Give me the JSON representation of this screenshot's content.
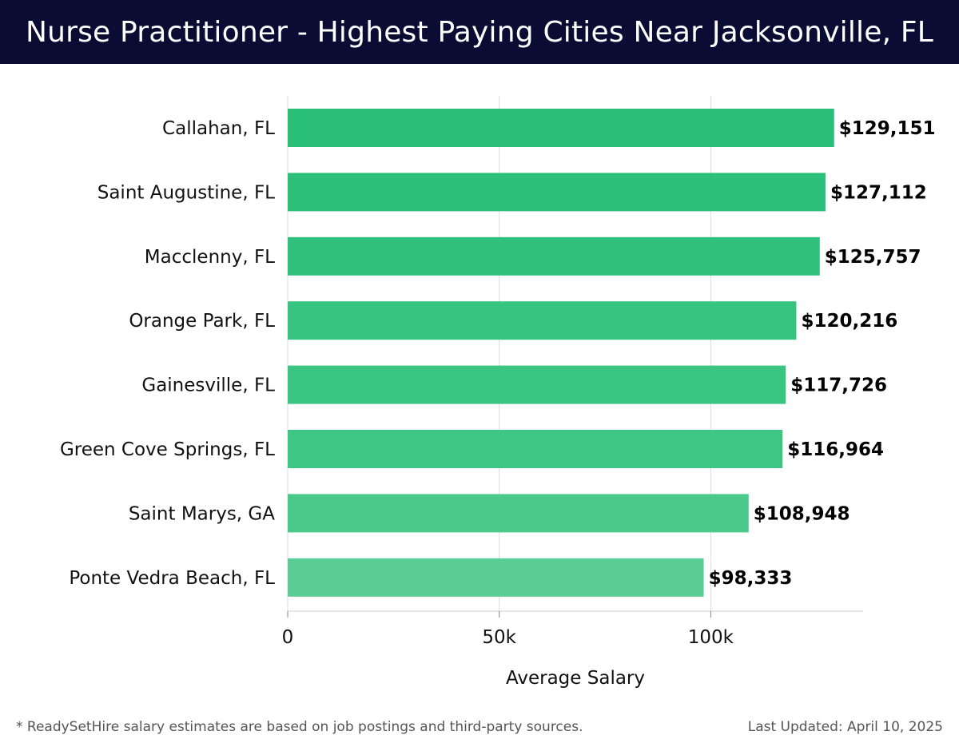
{
  "header": {
    "title": "Nurse Practitioner - Highest Paying Cities Near Jacksonville, FL"
  },
  "chart_data": {
    "type": "bar",
    "orientation": "horizontal",
    "categories": [
      "Callahan, FL",
      "Saint Augustine, FL",
      "Macclenny, FL",
      "Orange Park, FL",
      "Gainesville, FL",
      "Green Cove Springs, FL",
      "Saint Marys, GA",
      "Ponte Vedra Beach, FL"
    ],
    "values": [
      129151,
      127112,
      125757,
      120216,
      117726,
      116964,
      108948,
      98333
    ],
    "value_labels": [
      "$129,151",
      "$127,112",
      "$125,757",
      "$120,216",
      "$117,726",
      "$116,964",
      "$108,948",
      "$98,333"
    ],
    "xlabel": "Average Salary",
    "ylabel": "",
    "xlim": [
      0,
      136000
    ],
    "x_ticks": [
      0,
      50000,
      100000
    ],
    "x_tick_labels": [
      "0",
      "50k",
      "100k"
    ],
    "grid": "vertical",
    "bar_colors": [
      "#29bf76",
      "#2cc079",
      "#2fc17b",
      "#37c480",
      "#3bc582",
      "#3dc684",
      "#4ac98b",
      "#5acd96"
    ]
  },
  "footer": {
    "note": "* ReadySetHire salary estimates are based on job postings and third-party sources.",
    "updated": "Last Updated: April 10, 2025"
  }
}
